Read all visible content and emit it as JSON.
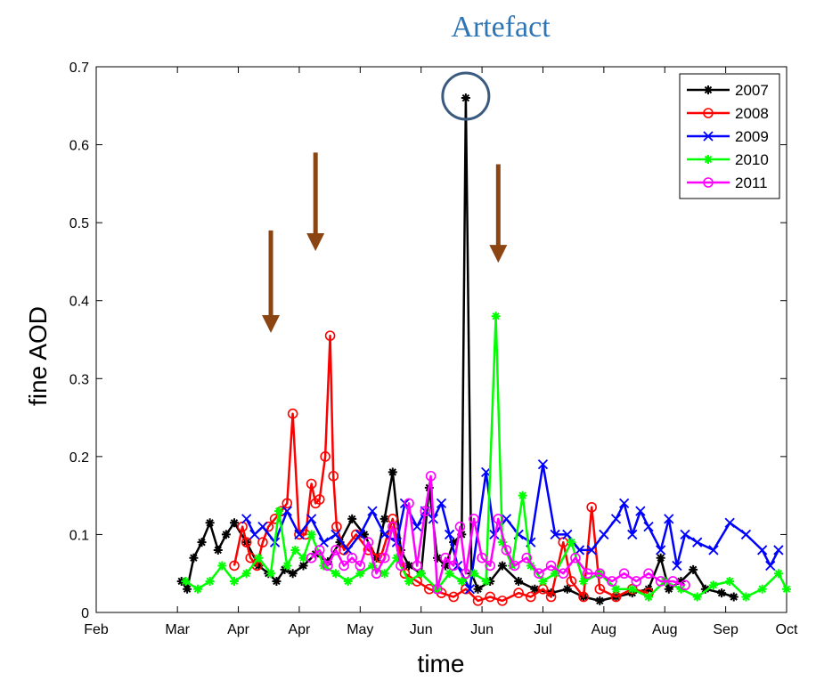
{
  "chart_data": {
    "type": "line",
    "title": "",
    "xlabel": "time",
    "ylabel": "fine AOD",
    "x_unit": "month (1 = Feb, 9 = Oct)",
    "xlim": [
      0.5,
      9.0
    ],
    "ylim": [
      0,
      0.7
    ],
    "x_ticks": [
      {
        "value": 0.5,
        "label": "Feb"
      },
      {
        "value": 1.5,
        "label": "Mar"
      },
      {
        "value": 2.25,
        "label": "Apr"
      },
      {
        "value": 3.0,
        "label": "Apr"
      },
      {
        "value": 3.75,
        "label": "May"
      },
      {
        "value": 4.5,
        "label": "Jun"
      },
      {
        "value": 5.25,
        "label": "Jun"
      },
      {
        "value": 6.0,
        "label": "Jul"
      },
      {
        "value": 6.75,
        "label": "Aug"
      },
      {
        "value": 7.5,
        "label": "Aug"
      },
      {
        "value": 8.25,
        "label": "Sep"
      },
      {
        "value": 9.0,
        "label": "Oct"
      }
    ],
    "y_ticks": [
      {
        "value": 0,
        "label": "0"
      },
      {
        "value": 0.1,
        "label": "0.1"
      },
      {
        "value": 0.2,
        "label": "0.2"
      },
      {
        "value": 0.3,
        "label": "0.3"
      },
      {
        "value": 0.4,
        "label": "0.4"
      },
      {
        "value": 0.5,
        "label": "0.5"
      },
      {
        "value": 0.6,
        "label": "0.6"
      },
      {
        "value": 0.7,
        "label": "0.7"
      }
    ],
    "grid": false,
    "legend_position": "top-right",
    "series": [
      {
        "name": "2007",
        "color": "#000000",
        "marker": "star",
        "points": [
          [
            1.55,
            0.04
          ],
          [
            1.62,
            0.03
          ],
          [
            1.7,
            0.07
          ],
          [
            1.8,
            0.09
          ],
          [
            1.9,
            0.115
          ],
          [
            2.0,
            0.08
          ],
          [
            2.1,
            0.1
          ],
          [
            2.2,
            0.115
          ],
          [
            2.35,
            0.09
          ],
          [
            2.5,
            0.06
          ],
          [
            2.62,
            0.05
          ],
          [
            2.72,
            0.04
          ],
          [
            2.82,
            0.055
          ],
          [
            2.92,
            0.05
          ],
          [
            3.05,
            0.06
          ],
          [
            3.2,
            0.075
          ],
          [
            3.35,
            0.065
          ],
          [
            3.5,
            0.09
          ],
          [
            3.65,
            0.12
          ],
          [
            3.8,
            0.1
          ],
          [
            3.95,
            0.07
          ],
          [
            4.05,
            0.12
          ],
          [
            4.15,
            0.18
          ],
          [
            4.25,
            0.08
          ],
          [
            4.35,
            0.06
          ],
          [
            4.5,
            0.05
          ],
          [
            4.6,
            0.16
          ],
          [
            4.7,
            0.07
          ],
          [
            4.8,
            0.06
          ],
          [
            4.9,
            0.09
          ],
          [
            5.0,
            0.1
          ],
          [
            5.05,
            0.66
          ],
          [
            5.12,
            0.05
          ],
          [
            5.2,
            0.03
          ],
          [
            5.35,
            0.04
          ],
          [
            5.5,
            0.06
          ],
          [
            5.7,
            0.04
          ],
          [
            5.9,
            0.03
          ],
          [
            6.1,
            0.025
          ],
          [
            6.3,
            0.03
          ],
          [
            6.5,
            0.02
          ],
          [
            6.7,
            0.015
          ],
          [
            6.9,
            0.02
          ],
          [
            7.1,
            0.025
          ],
          [
            7.3,
            0.03
          ],
          [
            7.45,
            0.07
          ],
          [
            7.55,
            0.03
          ],
          [
            7.7,
            0.04
          ],
          [
            7.85,
            0.055
          ],
          [
            8.0,
            0.03
          ],
          [
            8.2,
            0.025
          ],
          [
            8.35,
            0.02
          ]
        ]
      },
      {
        "name": "2008",
        "color": "#ff0000",
        "marker": "circle",
        "points": [
          [
            2.2,
            0.06
          ],
          [
            2.3,
            0.11
          ],
          [
            2.35,
            0.09
          ],
          [
            2.4,
            0.07
          ],
          [
            2.48,
            0.06
          ],
          [
            2.55,
            0.09
          ],
          [
            2.62,
            0.11
          ],
          [
            2.7,
            0.12
          ],
          [
            2.78,
            0.13
          ],
          [
            2.85,
            0.14
          ],
          [
            2.92,
            0.255
          ],
          [
            3.0,
            0.1
          ],
          [
            3.08,
            0.1
          ],
          [
            3.15,
            0.165
          ],
          [
            3.2,
            0.14
          ],
          [
            3.25,
            0.145
          ],
          [
            3.32,
            0.2
          ],
          [
            3.38,
            0.355
          ],
          [
            3.42,
            0.175
          ],
          [
            3.46,
            0.11
          ],
          [
            3.55,
            0.08
          ],
          [
            3.7,
            0.1
          ],
          [
            3.85,
            0.08
          ],
          [
            4.0,
            0.07
          ],
          [
            4.15,
            0.12
          ],
          [
            4.3,
            0.05
          ],
          [
            4.45,
            0.04
          ],
          [
            4.6,
            0.03
          ],
          [
            4.75,
            0.025
          ],
          [
            4.9,
            0.02
          ],
          [
            5.05,
            0.03
          ],
          [
            5.2,
            0.015
          ],
          [
            5.35,
            0.02
          ],
          [
            5.5,
            0.015
          ],
          [
            5.7,
            0.025
          ],
          [
            5.85,
            0.02
          ],
          [
            6.0,
            0.03
          ],
          [
            6.1,
            0.02
          ],
          [
            6.25,
            0.09
          ],
          [
            6.35,
            0.04
          ],
          [
            6.5,
            0.02
          ],
          [
            6.6,
            0.135
          ],
          [
            6.7,
            0.03
          ],
          [
            6.9,
            0.02
          ],
          [
            7.1,
            0.03
          ],
          [
            7.3,
            0.025
          ]
        ]
      },
      {
        "name": "2009",
        "color": "#0000ff",
        "marker": "x",
        "points": [
          [
            2.35,
            0.12
          ],
          [
            2.45,
            0.1
          ],
          [
            2.55,
            0.11
          ],
          [
            2.7,
            0.09
          ],
          [
            2.85,
            0.13
          ],
          [
            3.0,
            0.1
          ],
          [
            3.15,
            0.12
          ],
          [
            3.3,
            0.09
          ],
          [
            3.45,
            0.1
          ],
          [
            3.6,
            0.08
          ],
          [
            3.75,
            0.1
          ],
          [
            3.9,
            0.13
          ],
          [
            4.05,
            0.1
          ],
          [
            4.2,
            0.09
          ],
          [
            4.3,
            0.14
          ],
          [
            4.45,
            0.11
          ],
          [
            4.55,
            0.13
          ],
          [
            4.65,
            0.12
          ],
          [
            4.75,
            0.14
          ],
          [
            4.85,
            0.1
          ],
          [
            4.95,
            0.06
          ],
          [
            5.1,
            0.03
          ],
          [
            5.3,
            0.18
          ],
          [
            5.4,
            0.1
          ],
          [
            5.55,
            0.12
          ],
          [
            5.7,
            0.1
          ],
          [
            5.85,
            0.09
          ],
          [
            6.0,
            0.19
          ],
          [
            6.15,
            0.1
          ],
          [
            6.3,
            0.1
          ],
          [
            6.45,
            0.08
          ],
          [
            6.6,
            0.08
          ],
          [
            6.75,
            0.1
          ],
          [
            6.9,
            0.12
          ],
          [
            7.0,
            0.14
          ],
          [
            7.1,
            0.1
          ],
          [
            7.2,
            0.13
          ],
          [
            7.3,
            0.11
          ],
          [
            7.45,
            0.08
          ],
          [
            7.55,
            0.12
          ],
          [
            7.65,
            0.06
          ],
          [
            7.75,
            0.1
          ],
          [
            7.9,
            0.09
          ],
          [
            8.1,
            0.08
          ],
          [
            8.3,
            0.115
          ],
          [
            8.5,
            0.1
          ],
          [
            8.7,
            0.08
          ],
          [
            8.8,
            0.06
          ],
          [
            8.9,
            0.08
          ]
        ]
      },
      {
        "name": "2010",
        "color": "#00ff00",
        "marker": "star",
        "points": [
          [
            1.6,
            0.04
          ],
          [
            1.75,
            0.03
          ],
          [
            1.9,
            0.04
          ],
          [
            2.05,
            0.06
          ],
          [
            2.2,
            0.04
          ],
          [
            2.35,
            0.05
          ],
          [
            2.5,
            0.07
          ],
          [
            2.65,
            0.05
          ],
          [
            2.75,
            0.13
          ],
          [
            2.85,
            0.06
          ],
          [
            2.95,
            0.08
          ],
          [
            3.05,
            0.07
          ],
          [
            3.15,
            0.1
          ],
          [
            3.3,
            0.06
          ],
          [
            3.45,
            0.05
          ],
          [
            3.6,
            0.04
          ],
          [
            3.75,
            0.05
          ],
          [
            3.9,
            0.06
          ],
          [
            4.05,
            0.05
          ],
          [
            4.2,
            0.07
          ],
          [
            4.35,
            0.04
          ],
          [
            4.5,
            0.05
          ],
          [
            4.7,
            0.03
          ],
          [
            4.85,
            0.05
          ],
          [
            5.0,
            0.04
          ],
          [
            5.15,
            0.05
          ],
          [
            5.3,
            0.04
          ],
          [
            5.42,
            0.38
          ],
          [
            5.5,
            0.09
          ],
          [
            5.62,
            0.06
          ],
          [
            5.75,
            0.15
          ],
          [
            5.85,
            0.06
          ],
          [
            6.0,
            0.04
          ],
          [
            6.15,
            0.05
          ],
          [
            6.35,
            0.09
          ],
          [
            6.5,
            0.04
          ],
          [
            6.7,
            0.05
          ],
          [
            6.9,
            0.03
          ],
          [
            7.1,
            0.03
          ],
          [
            7.3,
            0.02
          ],
          [
            7.5,
            0.04
          ],
          [
            7.7,
            0.03
          ],
          [
            7.9,
            0.02
          ],
          [
            8.1,
            0.035
          ],
          [
            8.3,
            0.04
          ],
          [
            8.5,
            0.02
          ],
          [
            8.7,
            0.03
          ],
          [
            8.9,
            0.05
          ],
          [
            9.0,
            0.03
          ]
        ]
      },
      {
        "name": "2011",
        "color": "#ff00ff",
        "marker": "circle",
        "points": [
          [
            3.15,
            0.07
          ],
          [
            3.25,
            0.08
          ],
          [
            3.35,
            0.06
          ],
          [
            3.45,
            0.08
          ],
          [
            3.55,
            0.06
          ],
          [
            3.65,
            0.07
          ],
          [
            3.75,
            0.06
          ],
          [
            3.85,
            0.09
          ],
          [
            3.95,
            0.05
          ],
          [
            4.05,
            0.07
          ],
          [
            4.15,
            0.11
          ],
          [
            4.25,
            0.06
          ],
          [
            4.35,
            0.14
          ],
          [
            4.45,
            0.06
          ],
          [
            4.55,
            0.13
          ],
          [
            4.62,
            0.175
          ],
          [
            4.7,
            0.03
          ],
          [
            4.8,
            0.07
          ],
          [
            4.9,
            0.06
          ],
          [
            4.98,
            0.11
          ],
          [
            5.05,
            0.05
          ],
          [
            5.15,
            0.12
          ],
          [
            5.25,
            0.07
          ],
          [
            5.35,
            0.06
          ],
          [
            5.45,
            0.12
          ],
          [
            5.55,
            0.08
          ],
          [
            5.65,
            0.06
          ],
          [
            5.8,
            0.07
          ],
          [
            5.95,
            0.05
          ],
          [
            6.1,
            0.06
          ],
          [
            6.25,
            0.05
          ],
          [
            6.4,
            0.07
          ],
          [
            6.55,
            0.05
          ],
          [
            6.7,
            0.05
          ],
          [
            6.85,
            0.04
          ],
          [
            7.0,
            0.05
          ],
          [
            7.15,
            0.04
          ],
          [
            7.3,
            0.05
          ],
          [
            7.45,
            0.04
          ],
          [
            7.6,
            0.04
          ],
          [
            7.75,
            0.035
          ]
        ]
      }
    ],
    "annotations": [
      {
        "text": "Artefact",
        "color": "#2e75b6",
        "x": 5.05,
        "y": 0.66
      },
      {
        "text": "",
        "type": "arrow",
        "color": "#8b4513",
        "x": 2.65,
        "y_top": 0.49,
        "y_bottom": 0.37
      },
      {
        "text": "",
        "type": "arrow",
        "color": "#8b4513",
        "x": 3.2,
        "y_top": 0.59,
        "y_bottom": 0.475
      },
      {
        "text": "",
        "type": "arrow",
        "color": "#8b4513",
        "x": 5.45,
        "y_top": 0.575,
        "y_bottom": 0.46
      }
    ]
  }
}
